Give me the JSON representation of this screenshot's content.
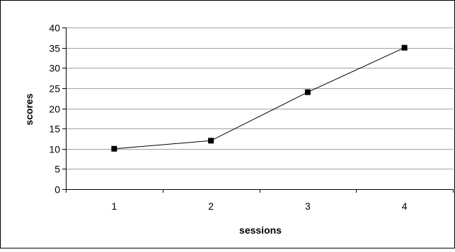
{
  "chart_data": {
    "type": "line",
    "title": "",
    "xlabel": "sessions",
    "ylabel": "scores",
    "x": [
      1,
      2,
      3,
      4
    ],
    "x_tick_labels": [
      "1",
      "2",
      "3",
      "4"
    ],
    "series": [
      {
        "values": [
          10,
          12,
          24,
          35
        ],
        "marker": "square"
      }
    ],
    "ylim": [
      0,
      40
    ],
    "y_ticks": [
      0,
      5,
      10,
      15,
      20,
      25,
      30,
      35,
      40
    ],
    "y_tick_labels": [
      "0",
      "5",
      "10",
      "15",
      "20",
      "25",
      "30",
      "35",
      "40"
    ],
    "grid": "horizontal",
    "legend": "none",
    "colors": {
      "line": "#000000",
      "marker": "#000000",
      "grid": "#a0a0a0",
      "background": "#ffffff"
    }
  }
}
